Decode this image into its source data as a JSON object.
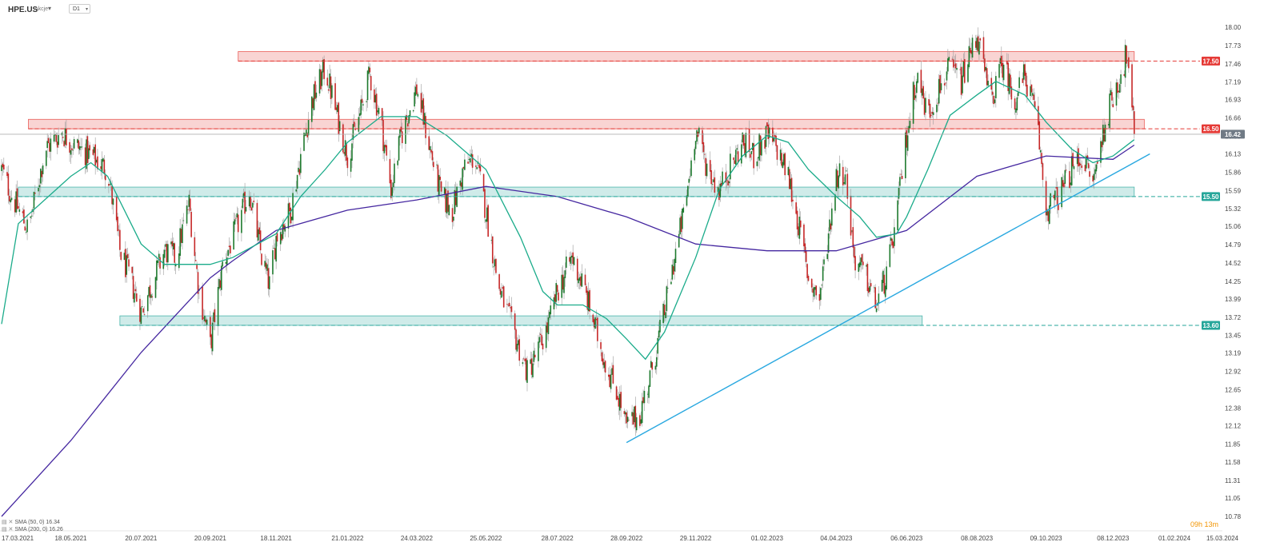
{
  "header": {
    "symbol": "HPE.US",
    "symbol_type": "Akcje",
    "timeframe": "D1"
  },
  "legend": [
    {
      "label": "SMA (50, 0) 16.34"
    },
    {
      "label": "SMA (200, 0) 16.26"
    }
  ],
  "timer": "09h 13m",
  "colors": {
    "resistance": "#e53935",
    "support": "#26a69a",
    "sma50": "#1aab8a",
    "sma200": "#4527a0",
    "trendline": "#29a8e0",
    "bull_candle": "#1e7a2e",
    "bear_candle": "#c62828",
    "price_badge": "#707a85"
  },
  "chart_data": {
    "type": "candlestick",
    "title": "",
    "xlabel": "",
    "ylabel": "",
    "ylim": [
      10.78,
      18.2
    ],
    "y_ticks": [
      "18.00",
      "17.73",
      "17.46",
      "17.19",
      "16.93",
      "16.66",
      "16.39",
      "16.13",
      "15.86",
      "15.59",
      "15.32",
      "15.06",
      "14.79",
      "14.52",
      "14.25",
      "13.99",
      "13.72",
      "13.45",
      "13.19",
      "12.92",
      "12.65",
      "12.38",
      "12.12",
      "11.85",
      "11.58",
      "11.31",
      "11.05",
      "10.78"
    ],
    "x_ticks": [
      "17.03.2021",
      "18.05.2021",
      "20.07.2021",
      "20.09.2021",
      "18.11.2021",
      "21.01.2022",
      "24.03.2022",
      "25.05.2022",
      "28.07.2022",
      "28.09.2022",
      "29.11.2022",
      "01.02.2023",
      "04.04.2023",
      "06.06.2023",
      "08.08.2023",
      "09.10.2023",
      "08.12.2023",
      "01.02.2024",
      "15.03.2024"
    ],
    "price_anchors": [
      {
        "date": "17.03.2021",
        "price": 15.9
      },
      {
        "date": "25.03.2021",
        "price": 15.55
      },
      {
        "date": "10.04.2021",
        "price": 15.0
      },
      {
        "date": "25.04.2021",
        "price": 16.2
      },
      {
        "date": "10.05.2021",
        "price": 16.45
      },
      {
        "date": "18.05.2021",
        "price": 16.3
      },
      {
        "date": "05.06.2021",
        "price": 16.1
      },
      {
        "date": "20.06.2021",
        "price": 15.9
      },
      {
        "date": "01.07.2021",
        "price": 14.7
      },
      {
        "date": "10.07.2021",
        "price": 14.3
      },
      {
        "date": "20.07.2021",
        "price": 13.8
      },
      {
        "date": "01.08.2021",
        "price": 14.3
      },
      {
        "date": "10.08.2021",
        "price": 14.7
      },
      {
        "date": "20.08.2021",
        "price": 14.6
      },
      {
        "date": "01.09.2021",
        "price": 15.4
      },
      {
        "date": "10.09.2021",
        "price": 14.1
      },
      {
        "date": "20.09.2021",
        "price": 13.3
      },
      {
        "date": "01.10.2021",
        "price": 14.5
      },
      {
        "date": "15.10.2021",
        "price": 15.1
      },
      {
        "date": "25.10.2021",
        "price": 15.6
      },
      {
        "date": "05.11.2021",
        "price": 14.6
      },
      {
        "date": "12.11.2021",
        "price": 14.2
      },
      {
        "date": "18.11.2021",
        "price": 14.9
      },
      {
        "date": "01.12.2021",
        "price": 15.3
      },
      {
        "date": "10.12.2021",
        "price": 16.1
      },
      {
        "date": "20.12.2021",
        "price": 16.9
      },
      {
        "date": "01.01.2022",
        "price": 17.4
      },
      {
        "date": "10.01.2022",
        "price": 16.8
      },
      {
        "date": "21.01.2022",
        "price": 16.1
      },
      {
        "date": "01.02.2022",
        "price": 16.7
      },
      {
        "date": "10.02.2022",
        "price": 17.3
      },
      {
        "date": "20.02.2022",
        "price": 16.6
      },
      {
        "date": "01.03.2022",
        "price": 15.6
      },
      {
        "date": "10.03.2022",
        "price": 16.4
      },
      {
        "date": "24.03.2022",
        "price": 17.1
      },
      {
        "date": "05.04.2022",
        "price": 16.2
      },
      {
        "date": "15.04.2022",
        "price": 15.5
      },
      {
        "date": "25.04.2022",
        "price": 15.3
      },
      {
        "date": "05.05.2022",
        "price": 15.9
      },
      {
        "date": "15.05.2022",
        "price": 16.1
      },
      {
        "date": "25.05.2022",
        "price": 15.3
      },
      {
        "date": "05.06.2022",
        "price": 14.2
      },
      {
        "date": "15.06.2022",
        "price": 13.7
      },
      {
        "date": "25.06.2022",
        "price": 13.2
      },
      {
        "date": "01.07.2022",
        "price": 12.9
      },
      {
        "date": "10.07.2022",
        "price": 13.2
      },
      {
        "date": "20.07.2022",
        "price": 13.6
      },
      {
        "date": "28.07.2022",
        "price": 14.1
      },
      {
        "date": "10.08.2022",
        "price": 14.6
      },
      {
        "date": "20.08.2022",
        "price": 14.2
      },
      {
        "date": "01.09.2022",
        "price": 13.5
      },
      {
        "date": "10.09.2022",
        "price": 13.0
      },
      {
        "date": "20.09.2022",
        "price": 12.6
      },
      {
        "date": "28.09.2022",
        "price": 12.1
      },
      {
        "date": "10.10.2022",
        "price": 12.3
      },
      {
        "date": "20.10.2022",
        "price": 12.9
      },
      {
        "date": "01.11.2022",
        "price": 13.8
      },
      {
        "date": "10.11.2022",
        "price": 14.6
      },
      {
        "date": "20.11.2022",
        "price": 15.4
      },
      {
        "date": "29.11.2022",
        "price": 16.5
      },
      {
        "date": "10.12.2022",
        "price": 15.9
      },
      {
        "date": "20.12.2022",
        "price": 15.6
      },
      {
        "date": "01.01.2023",
        "price": 16.0
      },
      {
        "date": "10.01.2023",
        "price": 16.3
      },
      {
        "date": "20.01.2023",
        "price": 16.1
      },
      {
        "date": "01.02.2023",
        "price": 16.4
      },
      {
        "date": "10.02.2023",
        "price": 16.2
      },
      {
        "date": "20.02.2023",
        "price": 15.8
      },
      {
        "date": "01.03.2023",
        "price": 15.1
      },
      {
        "date": "10.03.2023",
        "price": 14.3
      },
      {
        "date": "20.03.2023",
        "price": 14.0
      },
      {
        "date": "04.04.2023",
        "price": 15.8
      },
      {
        "date": "12.04.2023",
        "price": 15.9
      },
      {
        "date": "20.04.2023",
        "price": 14.6
      },
      {
        "date": "01.05.2023",
        "price": 14.3
      },
      {
        "date": "10.05.2023",
        "price": 13.9
      },
      {
        "date": "20.05.2023",
        "price": 14.4
      },
      {
        "date": "28.05.2023",
        "price": 15.2
      },
      {
        "date": "06.06.2023",
        "price": 16.4
      },
      {
        "date": "15.06.2023",
        "price": 17.3
      },
      {
        "date": "25.06.2023",
        "price": 16.7
      },
      {
        "date": "05.07.2023",
        "price": 17.1
      },
      {
        "date": "15.07.2023",
        "price": 17.4
      },
      {
        "date": "25.07.2023",
        "price": 17.2
      },
      {
        "date": "08.08.2023",
        "price": 17.9
      },
      {
        "date": "20.08.2023",
        "price": 16.9
      },
      {
        "date": "01.09.2023",
        "price": 17.5
      },
      {
        "date": "10.09.2023",
        "price": 16.9
      },
      {
        "date": "20.09.2023",
        "price": 17.3
      },
      {
        "date": "01.10.2023",
        "price": 16.6
      },
      {
        "date": "09.10.2023",
        "price": 15.3
      },
      {
        "date": "20.10.2023",
        "price": 15.5
      },
      {
        "date": "01.11.2023",
        "price": 15.9
      },
      {
        "date": "10.11.2023",
        "price": 16.1
      },
      {
        "date": "20.11.2023",
        "price": 15.7
      },
      {
        "date": "01.12.2023",
        "price": 16.6
      },
      {
        "date": "08.12.2023",
        "price": 17.0
      },
      {
        "date": "15.12.2023",
        "price": 17.3
      },
      {
        "date": "20.12.2023",
        "price": 17.6
      },
      {
        "date": "27.12.2023",
        "price": 16.42
      }
    ],
    "sma50": [
      {
        "date": "17.03.2021",
        "value": 13.62
      },
      {
        "date": "01.04.2021",
        "value": 15.1
      },
      {
        "date": "18.05.2021",
        "value": 15.8
      },
      {
        "date": "05.06.2021",
        "value": 16.0
      },
      {
        "date": "20.06.2021",
        "value": 15.8
      },
      {
        "date": "20.07.2021",
        "value": 14.8
      },
      {
        "date": "10.08.2021",
        "value": 14.5
      },
      {
        "date": "20.09.2021",
        "value": 14.5
      },
      {
        "date": "10.10.2021",
        "value": 14.6
      },
      {
        "date": "18.11.2021",
        "value": 14.95
      },
      {
        "date": "10.12.2021",
        "value": 15.5
      },
      {
        "date": "01.01.2022",
        "value": 15.9
      },
      {
        "date": "21.01.2022",
        "value": 16.3
      },
      {
        "date": "20.02.2022",
        "value": 16.68
      },
      {
        "date": "24.03.2022",
        "value": 16.68
      },
      {
        "date": "20.04.2022",
        "value": 16.4
      },
      {
        "date": "25.05.2022",
        "value": 15.9
      },
      {
        "date": "25.06.2022",
        "value": 14.9
      },
      {
        "date": "15.07.2022",
        "value": 14.1
      },
      {
        "date": "28.07.2022",
        "value": 13.9
      },
      {
        "date": "20.08.2022",
        "value": 13.9
      },
      {
        "date": "10.09.2022",
        "value": 13.7
      },
      {
        "date": "28.09.2022",
        "value": 13.4
      },
      {
        "date": "15.10.2022",
        "value": 13.1
      },
      {
        "date": "01.11.2022",
        "value": 13.5
      },
      {
        "date": "29.11.2022",
        "value": 14.6
      },
      {
        "date": "20.12.2022",
        "value": 15.6
      },
      {
        "date": "10.01.2023",
        "value": 16.1
      },
      {
        "date": "01.02.2023",
        "value": 16.4
      },
      {
        "date": "20.02.2023",
        "value": 16.3
      },
      {
        "date": "10.03.2023",
        "value": 15.9
      },
      {
        "date": "04.04.2023",
        "value": 15.5
      },
      {
        "date": "25.04.2023",
        "value": 15.2
      },
      {
        "date": "10.05.2023",
        "value": 14.9
      },
      {
        "date": "28.05.2023",
        "value": 14.95
      },
      {
        "date": "06.06.2023",
        "value": 15.2
      },
      {
        "date": "25.06.2023",
        "value": 15.9
      },
      {
        "date": "15.07.2023",
        "value": 16.7
      },
      {
        "date": "08.08.2023",
        "value": 17.0
      },
      {
        "date": "25.08.2023",
        "value": 17.2
      },
      {
        "date": "20.09.2023",
        "value": 17.0
      },
      {
        "date": "09.10.2023",
        "value": 16.6
      },
      {
        "date": "01.11.2023",
        "value": 16.2
      },
      {
        "date": "20.11.2023",
        "value": 16.0
      },
      {
        "date": "08.12.2023",
        "value": 16.1
      },
      {
        "date": "27.12.2023",
        "value": 16.34
      }
    ],
    "sma200": [
      {
        "date": "17.03.2021",
        "value": 10.78
      },
      {
        "date": "18.05.2021",
        "value": 11.9
      },
      {
        "date": "20.07.2021",
        "value": 13.2
      },
      {
        "date": "20.09.2021",
        "value": 14.3
      },
      {
        "date": "10.10.2021",
        "value": 14.55
      },
      {
        "date": "18.11.2021",
        "value": 15.0
      },
      {
        "date": "21.01.2022",
        "value": 15.3
      },
      {
        "date": "24.03.2022",
        "value": 15.45
      },
      {
        "date": "25.05.2022",
        "value": 15.65
      },
      {
        "date": "28.07.2022",
        "value": 15.5
      },
      {
        "date": "28.09.2022",
        "value": 15.2
      },
      {
        "date": "29.11.2022",
        "value": 14.8
      },
      {
        "date": "01.02.2023",
        "value": 14.7
      },
      {
        "date": "04.04.2023",
        "value": 14.7
      },
      {
        "date": "06.06.2023",
        "value": 15.0
      },
      {
        "date": "08.08.2023",
        "value": 15.8
      },
      {
        "date": "09.10.2023",
        "value": 16.1
      },
      {
        "date": "08.12.2023",
        "value": 16.05
      },
      {
        "date": "27.12.2023",
        "value": 16.26
      }
    ],
    "levels": [
      {
        "name": "Resistance",
        "value": 17.5,
        "label": "17.50",
        "kind": "resistance",
        "zone": [
          17.5,
          17.64
        ],
        "zone_from": "15.10.2021",
        "zone_to": "27.12.2023"
      },
      {
        "name": "Resistance",
        "value": 16.5,
        "label": "16.50",
        "kind": "resistance",
        "zone": [
          16.5,
          16.64
        ],
        "zone_from": "10.04.2021",
        "zone_to": "05.01.2024"
      },
      {
        "name": "Support",
        "value": 15.5,
        "label": "15.50",
        "kind": "support",
        "zone": [
          15.5,
          15.64
        ],
        "zone_from": "01.04.2021",
        "zone_to": "27.12.2023"
      },
      {
        "name": "Support",
        "value": 13.6,
        "label": "13.60",
        "kind": "support",
        "zone": [
          13.6,
          13.74
        ],
        "zone_from": "01.07.2021",
        "zone_to": "20.06.2023"
      }
    ],
    "current_price": {
      "value": 16.42,
      "label": "16.42"
    },
    "trendline": {
      "from": {
        "date": "28.09.2022",
        "price": 11.87
      },
      "to": {
        "date": "10.01.2024",
        "price": 16.13
      }
    }
  }
}
